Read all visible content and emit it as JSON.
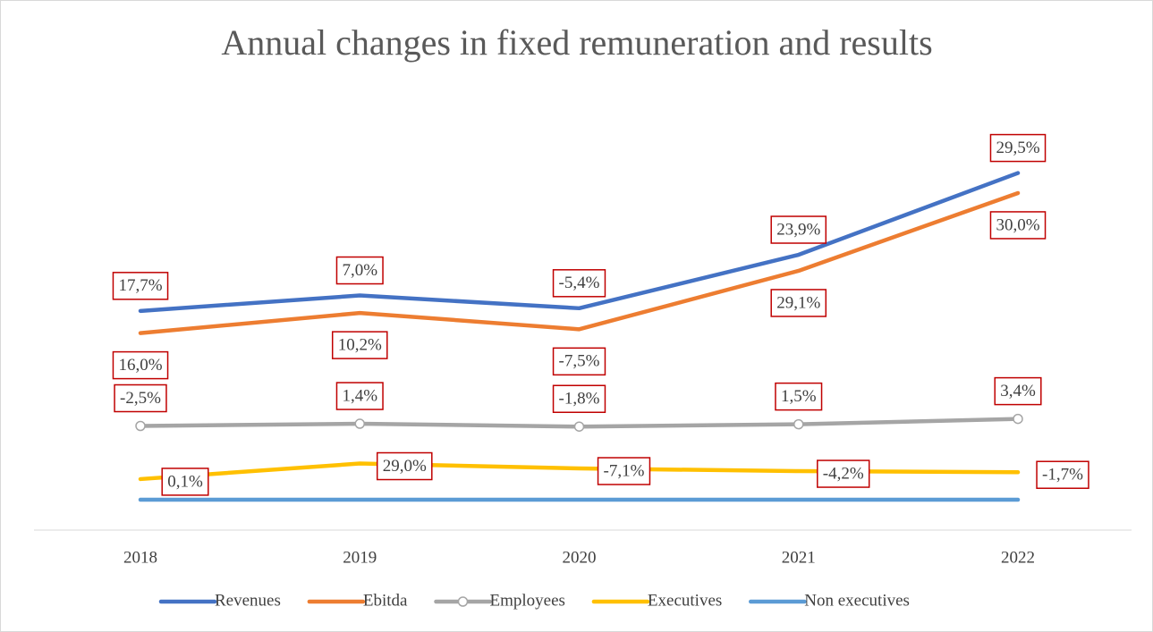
{
  "chart_data": {
    "type": "line",
    "title": "Annual changes in fixed remuneration and results",
    "categories": [
      "2018",
      "2019",
      "2020",
      "2021",
      "2022"
    ],
    "series": [
      {
        "name": "Revenues",
        "color": "#4472c4",
        "values": [
          17.7,
          7.0,
          -5.4,
          23.9,
          29.5
        ],
        "value_labels": [
          "17,7%",
          "7,0%",
          "-5,4%",
          "23,9%",
          "29,5%"
        ]
      },
      {
        "name": "Ebitda",
        "color": "#ed7d31",
        "values": [
          16.0,
          10.2,
          -7.5,
          29.1,
          30.0
        ],
        "value_labels": [
          "16,0%",
          "10,2%",
          "-7,5%",
          "29,1%",
          "30,0%"
        ]
      },
      {
        "name": "Employees",
        "color": "#a5a5a5",
        "marker": "circle",
        "values": [
          -2.5,
          1.4,
          -1.8,
          1.5,
          3.4
        ],
        "value_labels": [
          "-2,5%",
          "1,4%",
          "-1,8%",
          "1,5%",
          "3,4%"
        ]
      },
      {
        "name": "Executives",
        "color": "#ffc000",
        "values": [
          0.1,
          29.0,
          -7.1,
          -4.2,
          -1.7
        ],
        "value_labels": [
          "0,1%",
          "29,0%",
          "-7,1%",
          "-4,2%",
          "-1,7%"
        ]
      },
      {
        "name": "Non executives",
        "color": "#5b9bd5",
        "values": [
          0,
          0,
          0,
          0,
          0
        ]
      }
    ],
    "legend": "bottom"
  }
}
